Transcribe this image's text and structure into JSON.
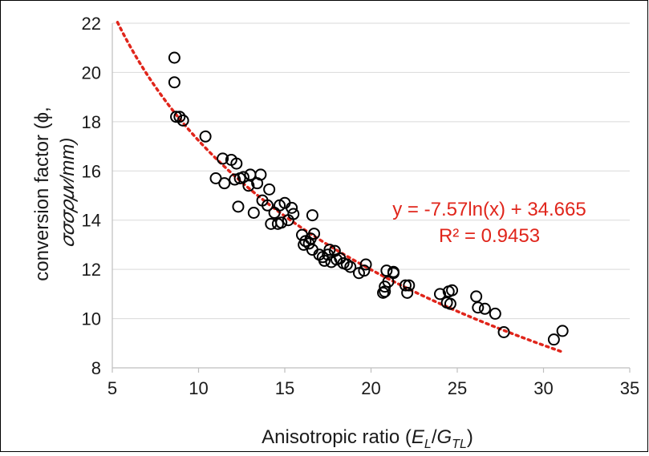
{
  "colors": {
    "trendline": "#e0251b",
    "marker": "#000000",
    "grid": "#d9d9d9",
    "axis": "#bfbfbf"
  },
  "chart_data": {
    "type": "scatter",
    "xlabel": "Anisotropic ratio (E_L/G_TL)",
    "xlabel_parts": {
      "prefix": "Anisotropic ratio (",
      "e": "E",
      "e_sub": "L",
      "slash": "/",
      "g": "G",
      "g_sub": "TL",
      "suffix": ")"
    },
    "ylabel": "conversion factor (ϕ, 𝜎𝜎𝜎𝜌𝜇𝑣/mm)",
    "ylabel_line1": "conversion factor (ϕ,",
    "ylabel_line2": "𝜎𝜎𝜎𝜌𝜇𝑣/mm)",
    "xlim": [
      5,
      35
    ],
    "ylim": [
      8,
      22
    ],
    "xticks": [
      5,
      10,
      15,
      20,
      25,
      30,
      35
    ],
    "yticks": [
      8,
      10,
      12,
      14,
      16,
      18,
      20,
      22
    ],
    "grid": "horizontal",
    "legend": "none",
    "points": [
      {
        "x": 8.6,
        "y": 20.6
      },
      {
        "x": 8.6,
        "y": 19.6
      },
      {
        "x": 8.7,
        "y": 18.2
      },
      {
        "x": 8.9,
        "y": 18.2
      },
      {
        "x": 9.1,
        "y": 18.05
      },
      {
        "x": 10.4,
        "y": 17.4
      },
      {
        "x": 11.0,
        "y": 15.7
      },
      {
        "x": 11.4,
        "y": 16.5
      },
      {
        "x": 11.5,
        "y": 15.5
      },
      {
        "x": 11.9,
        "y": 16.45
      },
      {
        "x": 12.1,
        "y": 15.65
      },
      {
        "x": 12.2,
        "y": 16.3
      },
      {
        "x": 12.4,
        "y": 15.7
      },
      {
        "x": 12.3,
        "y": 14.55
      },
      {
        "x": 12.6,
        "y": 15.75
      },
      {
        "x": 12.9,
        "y": 15.4
      },
      {
        "x": 13.0,
        "y": 15.85
      },
      {
        "x": 13.2,
        "y": 14.3
      },
      {
        "x": 13.4,
        "y": 15.5
      },
      {
        "x": 13.6,
        "y": 15.85
      },
      {
        "x": 13.7,
        "y": 14.8
      },
      {
        "x": 14.0,
        "y": 14.6
      },
      {
        "x": 14.1,
        "y": 15.25
      },
      {
        "x": 14.2,
        "y": 13.85
      },
      {
        "x": 14.4,
        "y": 14.3
      },
      {
        "x": 14.6,
        "y": 13.85
      },
      {
        "x": 14.7,
        "y": 14.6
      },
      {
        "x": 14.8,
        "y": 13.9
      },
      {
        "x": 15.0,
        "y": 14.7
      },
      {
        "x": 15.2,
        "y": 14.0
      },
      {
        "x": 15.4,
        "y": 14.5
      },
      {
        "x": 15.5,
        "y": 14.25
      },
      {
        "x": 16.0,
        "y": 13.4
      },
      {
        "x": 16.1,
        "y": 13.0
      },
      {
        "x": 16.2,
        "y": 13.15
      },
      {
        "x": 16.4,
        "y": 13.05
      },
      {
        "x": 16.5,
        "y": 13.25
      },
      {
        "x": 16.6,
        "y": 12.8
      },
      {
        "x": 16.6,
        "y": 14.2
      },
      {
        "x": 16.7,
        "y": 13.45
      },
      {
        "x": 17.0,
        "y": 12.6
      },
      {
        "x": 17.2,
        "y": 12.5
      },
      {
        "x": 17.3,
        "y": 12.35
      },
      {
        "x": 17.5,
        "y": 12.6
      },
      {
        "x": 17.6,
        "y": 12.8
      },
      {
        "x": 17.7,
        "y": 12.3
      },
      {
        "x": 17.9,
        "y": 12.75
      },
      {
        "x": 18.0,
        "y": 12.4
      },
      {
        "x": 18.2,
        "y": 12.45
      },
      {
        "x": 18.4,
        "y": 12.25
      },
      {
        "x": 18.6,
        "y": 12.2
      },
      {
        "x": 18.8,
        "y": 12.1
      },
      {
        "x": 19.3,
        "y": 11.85
      },
      {
        "x": 19.6,
        "y": 11.95
      },
      {
        "x": 19.7,
        "y": 12.2
      },
      {
        "x": 20.7,
        "y": 11.05
      },
      {
        "x": 20.8,
        "y": 11.1
      },
      {
        "x": 20.8,
        "y": 11.3
      },
      {
        "x": 20.9,
        "y": 11.95
      },
      {
        "x": 21.0,
        "y": 11.5
      },
      {
        "x": 21.3,
        "y": 11.85
      },
      {
        "x": 21.3,
        "y": 11.9
      },
      {
        "x": 22.0,
        "y": 11.35
      },
      {
        "x": 22.1,
        "y": 11.05
      },
      {
        "x": 22.2,
        "y": 11.35
      },
      {
        "x": 24.0,
        "y": 11.0
      },
      {
        "x": 24.4,
        "y": 10.65
      },
      {
        "x": 24.5,
        "y": 11.1
      },
      {
        "x": 24.6,
        "y": 10.6
      },
      {
        "x": 24.7,
        "y": 11.15
      },
      {
        "x": 26.1,
        "y": 10.9
      },
      {
        "x": 26.2,
        "y": 10.45
      },
      {
        "x": 26.6,
        "y": 10.4
      },
      {
        "x": 27.2,
        "y": 10.2
      },
      {
        "x": 27.7,
        "y": 9.45
      },
      {
        "x": 30.6,
        "y": 9.15
      },
      {
        "x": 31.1,
        "y": 9.5
      }
    ],
    "trendline": {
      "type": "logarithmic",
      "a": -7.57,
      "b": 34.665,
      "x_range": [
        5.3,
        31.0
      ],
      "equation": "y = -7.57ln(x) + 34.665",
      "r_squared": "R² = 0.9453"
    }
  }
}
